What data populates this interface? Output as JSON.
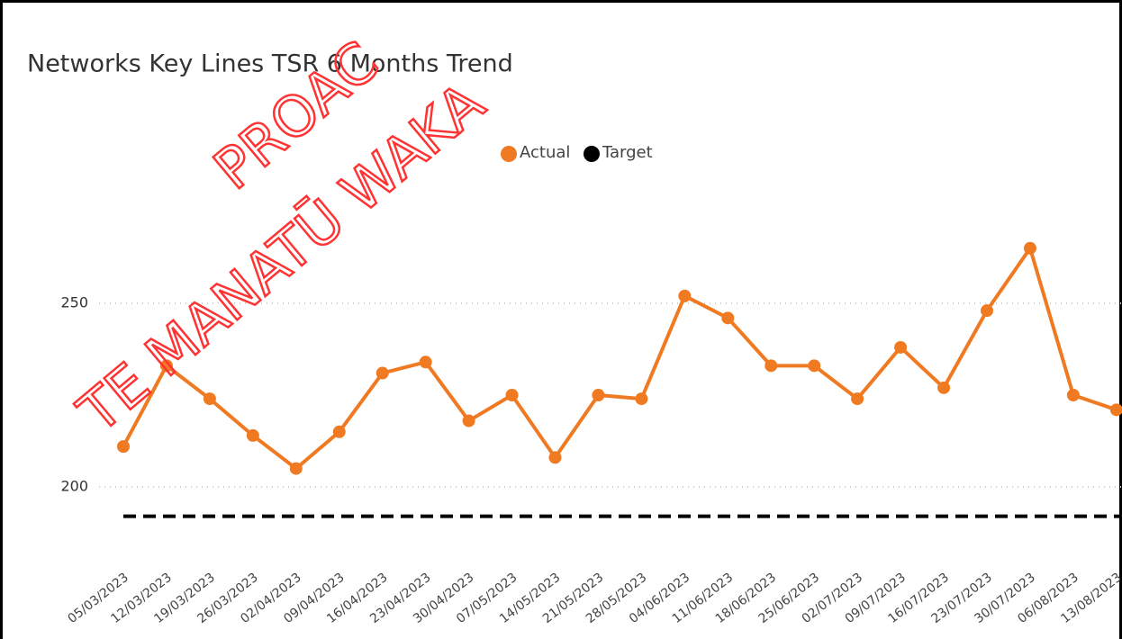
{
  "chart_data": {
    "type": "line",
    "title": "Networks Key Lines TSR 6 Months Trend",
    "watermark": [
      "PROAC",
      "TE MANATŪ WAKA"
    ],
    "categories": [
      "05/03/2023",
      "12/03/2023",
      "19/03/2023",
      "26/03/2023",
      "02/04/2023",
      "09/04/2023",
      "16/04/2023",
      "23/04/2023",
      "30/04/2023",
      "07/05/2023",
      "14/05/2023",
      "21/05/2023",
      "28/05/2023",
      "04/06/2023",
      "11/06/2023",
      "18/06/2023",
      "25/06/2023",
      "02/07/2023",
      "09/07/2023",
      "16/07/2023",
      "23/07/2023",
      "30/07/2023",
      "06/08/2023",
      "13/08/2023"
    ],
    "series": [
      {
        "name": "Actual",
        "color": "#f07a22",
        "values": [
          211,
          233,
          224,
          214,
          205,
          215,
          231,
          234,
          218,
          225,
          208,
          225,
          224,
          252,
          246,
          233,
          233,
          224,
          238,
          227,
          248,
          265,
          225,
          221
        ]
      },
      {
        "name": "Target",
        "color": "#000000",
        "values": [
          192,
          192,
          192,
          192,
          192,
          192,
          192,
          192,
          192,
          192,
          192,
          192,
          192,
          192,
          192,
          192,
          192,
          192,
          192,
          192,
          192,
          192,
          192,
          192
        ]
      }
    ],
    "ylim": [
      180,
      270
    ],
    "yticks": [
      200,
      250
    ],
    "grid": true
  }
}
